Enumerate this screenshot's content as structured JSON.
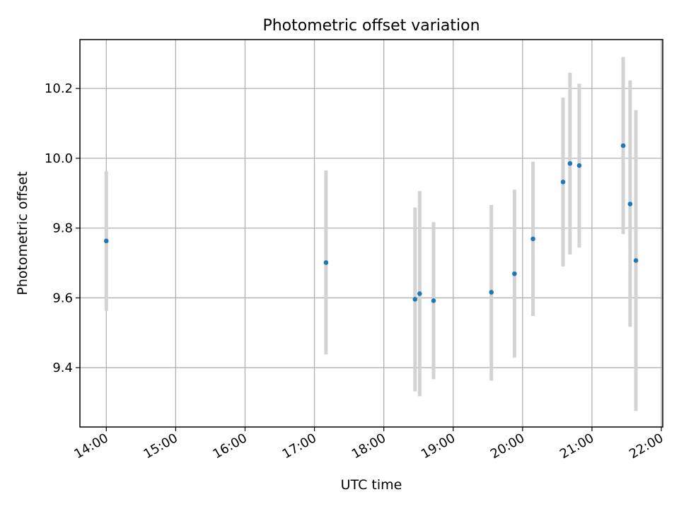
{
  "chart_data": {
    "type": "scatter",
    "title": "Photometric offset variation",
    "xlabel": "UTC time",
    "ylabel": "Photometric offset",
    "x_ticks": [
      "14:00",
      "15:00",
      "16:00",
      "17:00",
      "18:00",
      "19:00",
      "20:00",
      "21:00",
      "22:00"
    ],
    "y_ticks": [
      "9.4",
      "9.6",
      "9.8",
      "10.0",
      "10.2"
    ],
    "x_unit": "hours UTC",
    "xlim": [
      13.62,
      22.02
    ],
    "ylim": [
      9.23,
      10.34
    ],
    "grid": true,
    "colors": {
      "points": "#1f77b4",
      "errorbars": "#d3d3d3",
      "grid": "#b0b0b0"
    },
    "points": [
      {
        "x": "14:00",
        "y": 9.763,
        "err_low": 9.563,
        "err_high": 9.963
      },
      {
        "x": "17:10",
        "y": 9.701,
        "err_low": 9.438,
        "err_high": 9.965
      },
      {
        "x": "18:27",
        "y": 9.596,
        "err_low": 9.332,
        "err_high": 9.859
      },
      {
        "x": "18:31",
        "y": 9.612,
        "err_low": 9.318,
        "err_high": 9.906
      },
      {
        "x": "18:43",
        "y": 9.592,
        "err_low": 9.367,
        "err_high": 9.817
      },
      {
        "x": "19:33",
        "y": 9.616,
        "err_low": 9.363,
        "err_high": 9.866
      },
      {
        "x": "19:53",
        "y": 9.669,
        "err_low": 9.429,
        "err_high": 9.91
      },
      {
        "x": "20:09",
        "y": 9.769,
        "err_low": 9.548,
        "err_high": 9.99
      },
      {
        "x": "20:35",
        "y": 9.932,
        "err_low": 9.69,
        "err_high": 10.174
      },
      {
        "x": "20:41",
        "y": 9.985,
        "err_low": 9.724,
        "err_high": 10.245
      },
      {
        "x": "20:49",
        "y": 9.979,
        "err_low": 9.744,
        "err_high": 10.214
      },
      {
        "x": "21:27",
        "y": 10.036,
        "err_low": 9.783,
        "err_high": 10.29
      },
      {
        "x": "21:33",
        "y": 9.869,
        "err_low": 9.517,
        "err_high": 10.223
      },
      {
        "x": "21:38",
        "y": 9.707,
        "err_low": 9.276,
        "err_high": 10.138
      }
    ]
  }
}
